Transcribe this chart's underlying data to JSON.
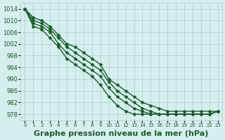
{
  "title": "Graphe pression niveau de la mer (hPa)",
  "xlabel_ticks": [
    "0",
    "1",
    "2",
    "3",
    "4",
    "5",
    "6",
    "7",
    "8",
    "9",
    "10",
    "11",
    "12",
    "13",
    "14",
    "15",
    "16",
    "17",
    "18",
    "19",
    "20",
    "21",
    "22",
    "23"
  ],
  "yticks": [
    978,
    982,
    986,
    990,
    994,
    998,
    1002,
    1006,
    1010,
    1014
  ],
  "ylim": [
    976,
    1016
  ],
  "xlim": [
    -0.5,
    23.5
  ],
  "background_color": "#d6eeee",
  "grid_color": "#aacccc",
  "line_color": "#1a5c2a",
  "lines": [
    [
      1014,
      1011,
      1010,
      1008,
      1005,
      1002,
      1001,
      999,
      997,
      995,
      990,
      988,
      986,
      984,
      982,
      981,
      980,
      979,
      979,
      979,
      979,
      979,
      979,
      979
    ],
    [
      1014,
      1010,
      1009,
      1007,
      1004,
      1001,
      999,
      997,
      995,
      993,
      989,
      986,
      984,
      982,
      980,
      979,
      978,
      978,
      978,
      978,
      978,
      978,
      978,
      979
    ],
    [
      1014,
      1009,
      1008,
      1006,
      1002,
      999,
      997,
      995,
      993,
      991,
      987,
      984,
      982,
      980,
      979,
      978,
      978,
      978,
      978,
      978,
      978,
      978,
      978,
      979
    ],
    [
      1014,
      1008,
      1007,
      1004,
      1001,
      997,
      995,
      993,
      991,
      988,
      984,
      981,
      979,
      978,
      978,
      978,
      978,
      978,
      978,
      978,
      978,
      978,
      978,
      979
    ]
  ],
  "title_fontsize": 8,
  "tick_fontsize": 6,
  "line_width": 1.0,
  "marker": "*",
  "marker_size": 3
}
